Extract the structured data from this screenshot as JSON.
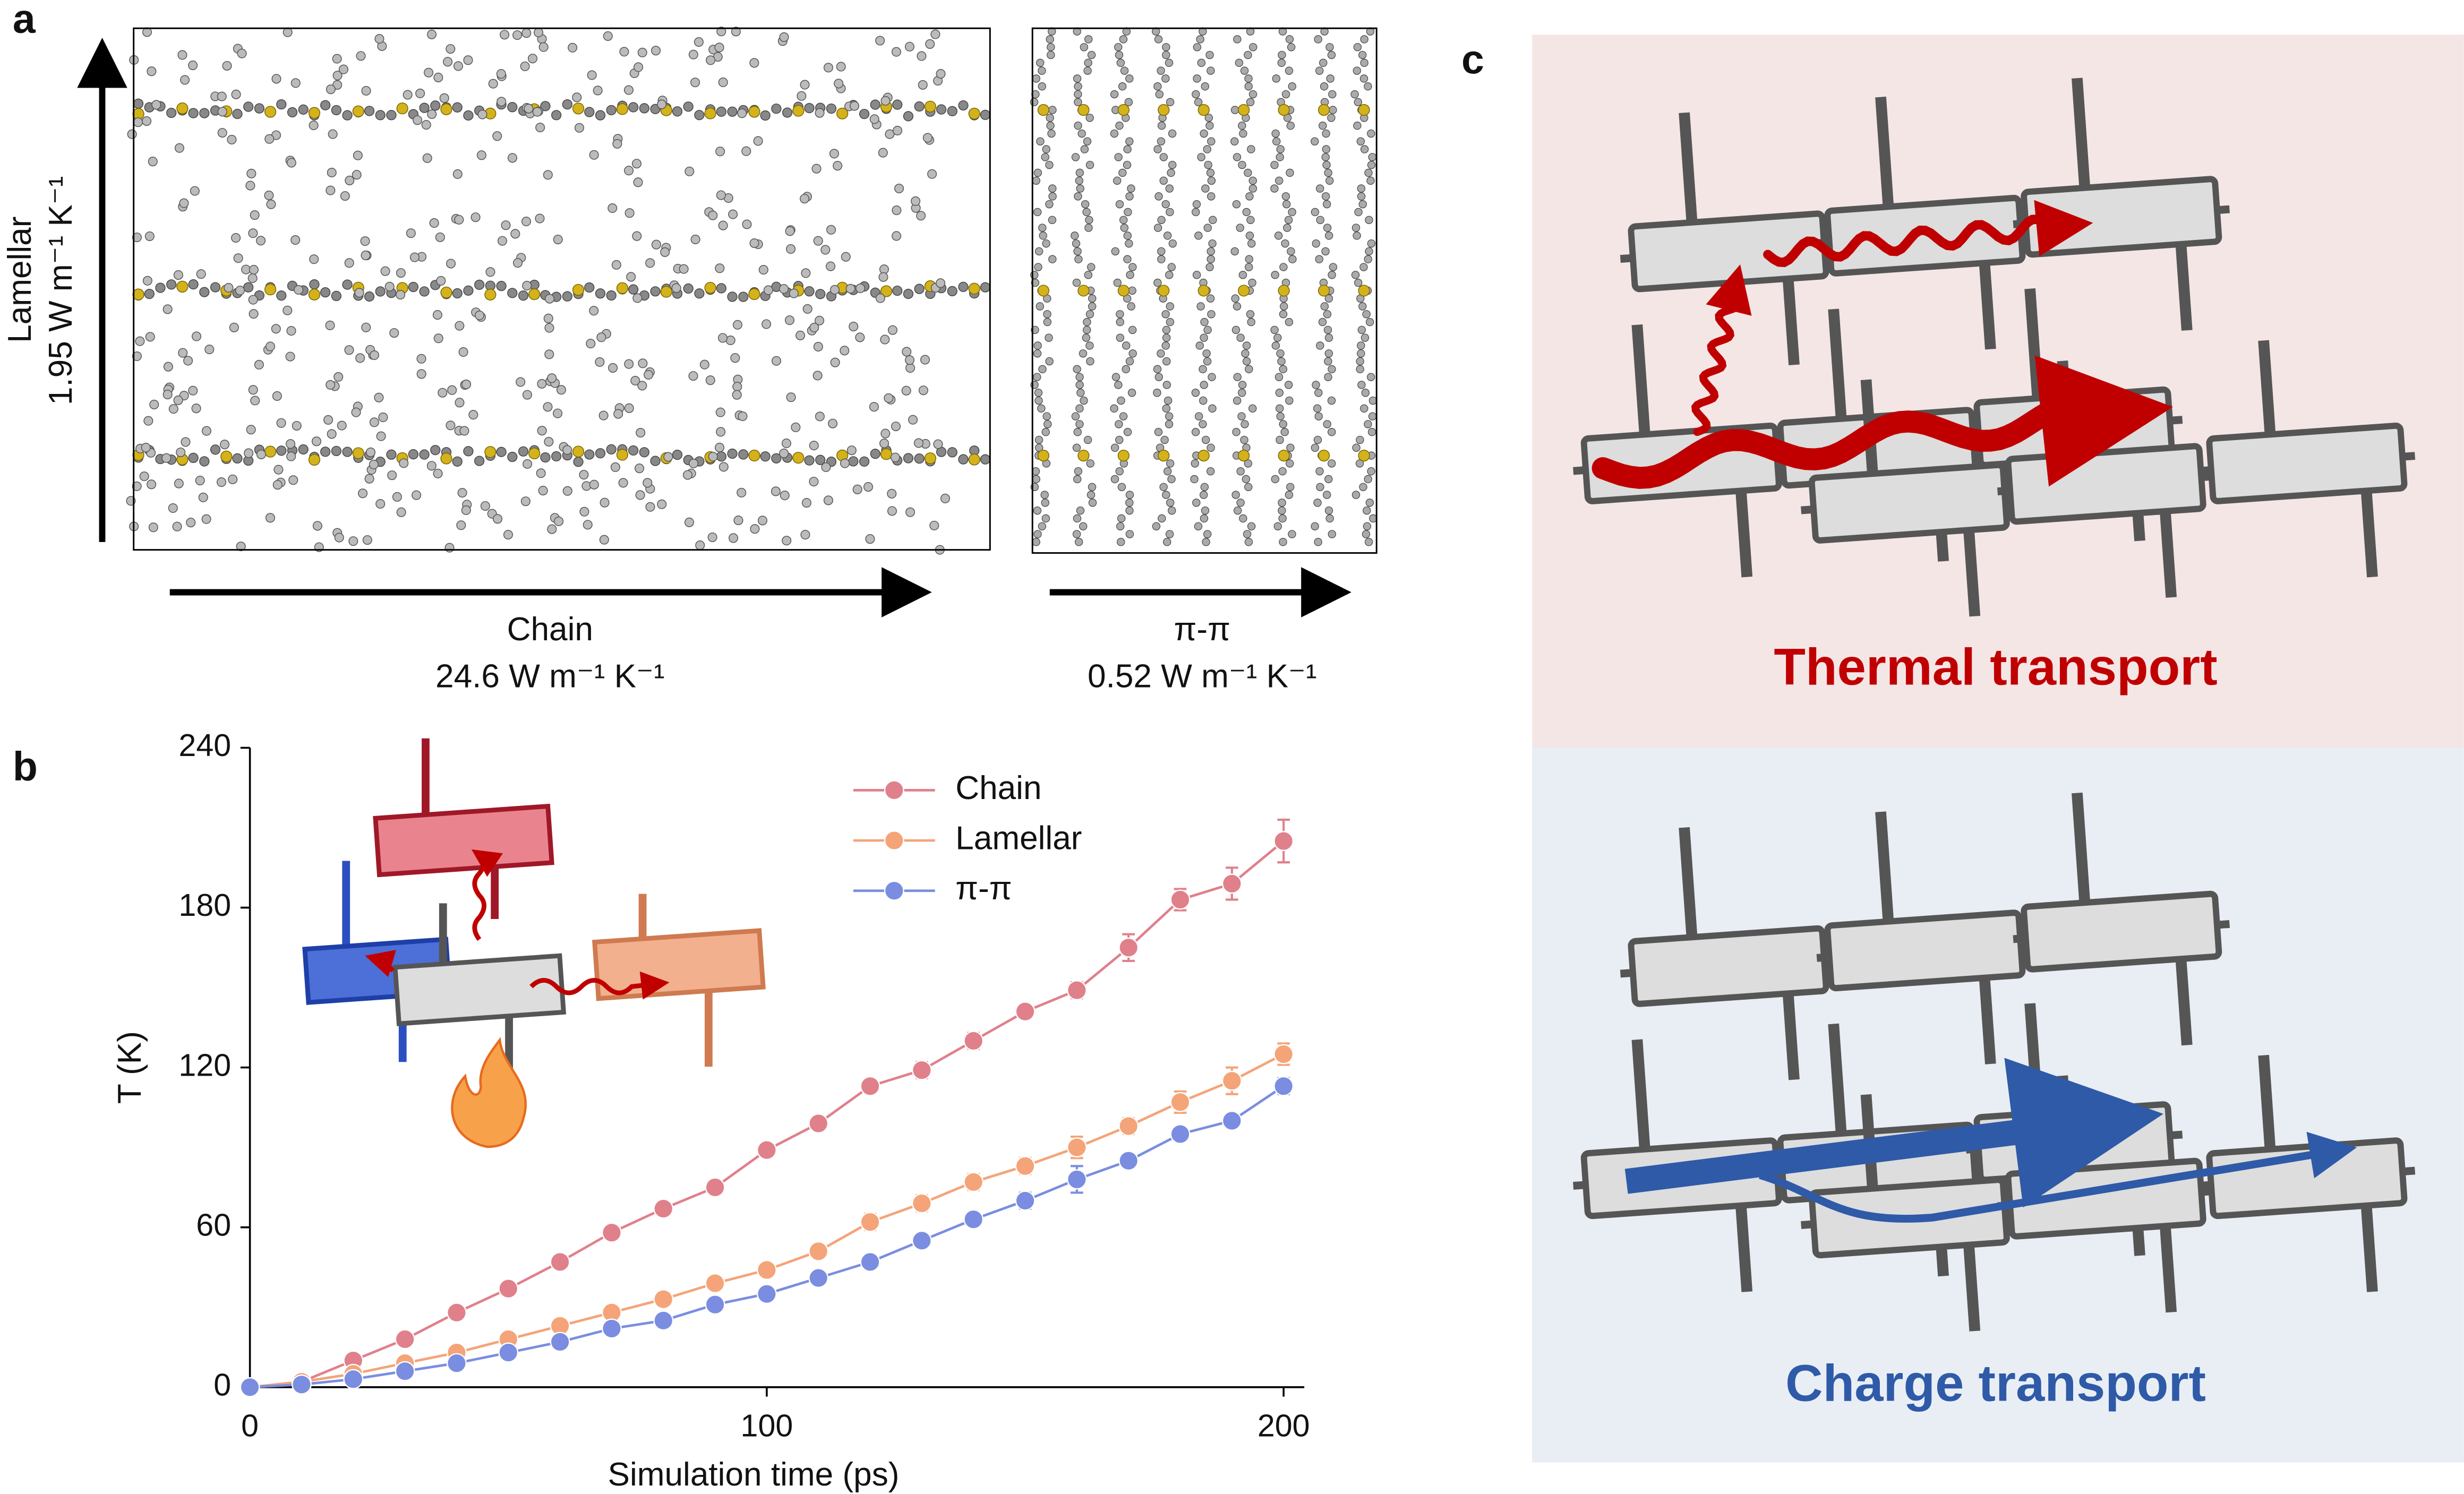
{
  "panel_a": {
    "label": "a",
    "lamellar": "Lamellar",
    "lamellar_value": "1.95 W m⁻¹ K⁻¹",
    "chain": "Chain",
    "chain_value": "24.6 W m⁻¹ K⁻¹",
    "pipi": "π-π",
    "pipi_value": "0.52 W m⁻¹ K⁻¹"
  },
  "panel_b": {
    "label": "b"
  },
  "panel_c": {
    "label": "c",
    "thermal": "Thermal transport",
    "charge": "Charge transport"
  },
  "chart_data": {
    "type": "line",
    "x_label": "Simulation time (ps)",
    "y_label": "T (K)",
    "x": [
      0,
      10,
      20,
      30,
      40,
      50,
      60,
      70,
      80,
      90,
      100,
      110,
      120,
      130,
      140,
      150,
      160,
      170,
      180,
      190,
      200
    ],
    "series": [
      {
        "name": "Chain",
        "color": "#e0808b",
        "values": [
          0,
          2,
          10,
          18,
          28,
          37,
          47,
          58,
          67,
          75,
          89,
          99,
          113,
          119,
          130,
          141,
          149,
          165,
          183,
          189,
          205
        ],
        "errors": [
          0,
          0.5,
          1,
          1,
          1,
          1,
          1,
          1.5,
          2.5,
          2,
          2.5,
          2,
          2,
          3,
          3,
          2.5,
          3,
          5,
          4,
          6,
          8
        ]
      },
      {
        "name": "Lamellar",
        "color": "#f4a478",
        "values": [
          0,
          2,
          5,
          9,
          13,
          18,
          23,
          28,
          33,
          39,
          44,
          51,
          62,
          69,
          77,
          83,
          90,
          98,
          107,
          115,
          125
        ],
        "errors": [
          0,
          0.5,
          0.5,
          1,
          1,
          1,
          1,
          1.5,
          1.5,
          1.5,
          2,
          2,
          3,
          3,
          3,
          3,
          4,
          3,
          4,
          5,
          4
        ]
      },
      {
        "name": "π-π",
        "color": "#7a8de0",
        "values": [
          0,
          1,
          3,
          6,
          9,
          13,
          17,
          22,
          25,
          31,
          35,
          41,
          47,
          55,
          63,
          70,
          78,
          85,
          95,
          100,
          113
        ],
        "errors": [
          0,
          0.5,
          0.5,
          1,
          1,
          1,
          1,
          1,
          1,
          1.5,
          1.5,
          1.5,
          2,
          2,
          2,
          3,
          5,
          2,
          2,
          2,
          3
        ]
      }
    ],
    "xlim": [
      0,
      204
    ],
    "ylim": [
      0,
      240
    ],
    "xticks": [
      0,
      100,
      200
    ],
    "yticks": [
      0,
      60,
      120,
      180,
      240
    ]
  }
}
